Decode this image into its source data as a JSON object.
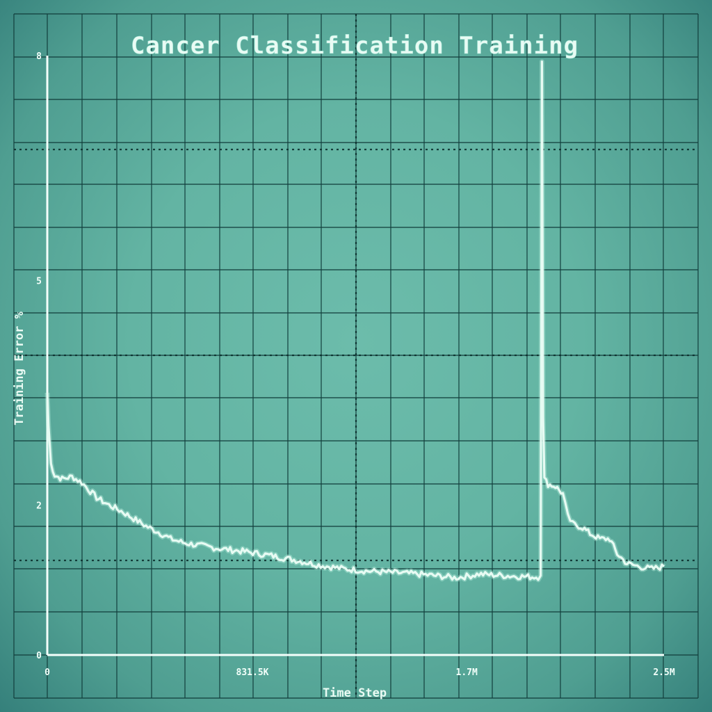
{
  "chart_data": {
    "type": "line",
    "title": "Cancer Classification Training",
    "xlabel": "Time Step",
    "ylabel": "Training Error %",
    "xlim": [
      0,
      2500000
    ],
    "ylim": [
      0,
      8
    ],
    "x_ticks": [
      {
        "value": 0,
        "label": "0"
      },
      {
        "value": 831500,
        "label": "831.5K"
      },
      {
        "value": 1700000,
        "label": "1.7M"
      },
      {
        "value": 2500000,
        "label": "2.5M"
      }
    ],
    "y_ticks": [
      {
        "value": 0,
        "label": "0"
      },
      {
        "value": 2,
        "label": "2"
      },
      {
        "value": 5,
        "label": "5"
      },
      {
        "value": 8,
        "label": "8"
      }
    ],
    "grid": true,
    "series": [
      {
        "x": [
          0,
          5000,
          15000,
          30000,
          60000,
          100000,
          140000,
          200000,
          250000,
          300000,
          350000,
          400000,
          450000,
          500000,
          550000,
          600000,
          700000,
          800000,
          900000,
          1000000,
          1100000,
          1200000,
          1300000,
          1400000,
          1500000,
          1600000,
          1650000,
          1700000,
          1750000,
          1800000,
          1900000,
          1990000,
          2000000,
          2005000,
          2010000,
          2015000,
          2030000,
          2060000,
          2090000,
          2110000,
          2130000,
          2170000,
          2200000,
          2240000,
          2280000,
          2310000,
          2350000,
          2400000,
          2450000,
          2500000
        ],
        "y": [
          3.5,
          3.05,
          2.55,
          2.4,
          2.35,
          2.38,
          2.3,
          2.1,
          2.0,
          1.92,
          1.82,
          1.72,
          1.64,
          1.55,
          1.5,
          1.47,
          1.42,
          1.38,
          1.33,
          1.27,
          1.2,
          1.15,
          1.12,
          1.1,
          1.08,
          1.05,
          1.03,
          1.05,
          1.08,
          1.07,
          1.05,
          1.04,
          1.06,
          7.92,
          3.2,
          2.35,
          2.28,
          2.25,
          2.15,
          1.85,
          1.75,
          1.7,
          1.62,
          1.55,
          1.55,
          1.35,
          1.22,
          1.18,
          1.15,
          1.18
        ]
      }
    ]
  }
}
